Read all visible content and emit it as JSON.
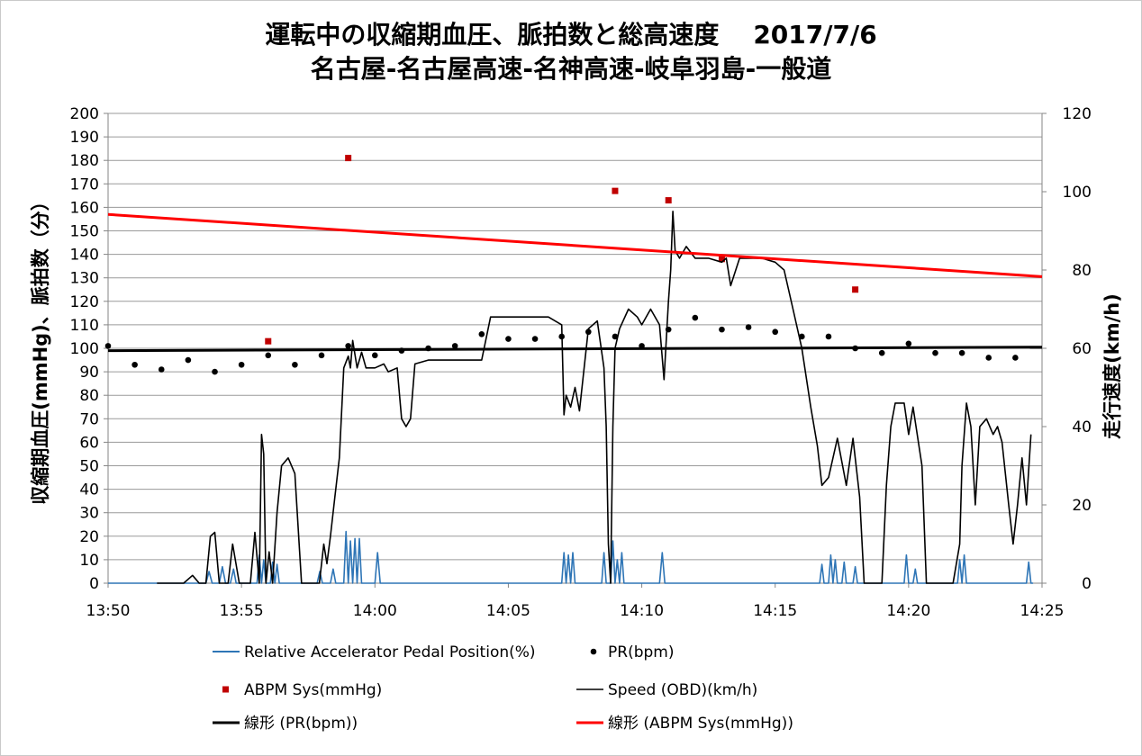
{
  "chart_data": {
    "type": "line",
    "title": "運転中の収縮期血圧、脈拍数と総高速度",
    "title_date": "2017/7/6",
    "subtitle": "名古屋-名古屋高速-名神高速-岐阜羽島-一般道",
    "ylabel": "収縮期血圧(mmHg)、脈拍数（分）",
    "y2label": "走行速度(km/h)",
    "ylim": [
      0,
      200
    ],
    "y2lim": [
      0,
      120
    ],
    "xlim": [
      "13:50",
      "14:25"
    ],
    "x_ticks": [
      "13:50",
      "13:55",
      "14:00",
      "14:05",
      "14:10",
      "14:15",
      "14:20",
      "14:25"
    ],
    "y_ticks": [
      0,
      10,
      20,
      30,
      40,
      50,
      60,
      70,
      80,
      90,
      100,
      110,
      120,
      130,
      140,
      150,
      160,
      170,
      180,
      190,
      200
    ],
    "y2_ticks": [
      0,
      20,
      40,
      60,
      80,
      100,
      120
    ],
    "grid": true,
    "legend_placement": "bottom",
    "series": [
      {
        "name": "Relative Accelerator Pedal Position(%)",
        "kind": "line",
        "axis": "left",
        "color": "#2e75b6",
        "points": [
          [
            "13:50:00",
            0
          ],
          [
            "13:53:40",
            0
          ],
          [
            "13:53:47",
            5
          ],
          [
            "13:53:54",
            0
          ],
          [
            "13:54:00",
            0
          ],
          [
            "13:54:10",
            0
          ],
          [
            "13:54:17",
            7
          ],
          [
            "13:54:24",
            0
          ],
          [
            "13:54:35",
            0
          ],
          [
            "13:54:42",
            6
          ],
          [
            "13:54:48",
            0
          ],
          [
            "13:55:35",
            0
          ],
          [
            "13:55:40",
            12
          ],
          [
            "13:55:45",
            0
          ],
          [
            "13:55:50",
            10
          ],
          [
            "13:55:55",
            0
          ],
          [
            "13:56:05",
            0
          ],
          [
            "13:56:10",
            9
          ],
          [
            "13:56:15",
            0
          ],
          [
            "13:56:20",
            8
          ],
          [
            "13:56:25",
            0
          ],
          [
            "13:57:50",
            0
          ],
          [
            "13:57:56",
            5
          ],
          [
            "13:58:02",
            0
          ],
          [
            "13:58:20",
            0
          ],
          [
            "13:58:26",
            6
          ],
          [
            "13:58:32",
            0
          ],
          [
            "13:58:50",
            0
          ],
          [
            "13:58:55",
            22
          ],
          [
            "13:59:00",
            0
          ],
          [
            "13:59:05",
            18
          ],
          [
            "13:59:10",
            0
          ],
          [
            "13:59:15",
            19
          ],
          [
            "13:59:20",
            0
          ],
          [
            "13:59:25",
            19
          ],
          [
            "13:59:30",
            0
          ],
          [
            "14:00:00",
            0
          ],
          [
            "14:00:06",
            13
          ],
          [
            "14:00:12",
            0
          ],
          [
            "14:07:00",
            0
          ],
          [
            "14:07:05",
            13
          ],
          [
            "14:07:10",
            0
          ],
          [
            "14:07:15",
            12
          ],
          [
            "14:07:20",
            0
          ],
          [
            "14:07:25",
            13
          ],
          [
            "14:07:30",
            0
          ],
          [
            "14:08:30",
            0
          ],
          [
            "14:08:35",
            13
          ],
          [
            "14:08:40",
            0
          ],
          [
            "14:08:50",
            0
          ],
          [
            "14:08:55",
            18
          ],
          [
            "14:09:00",
            0
          ],
          [
            "14:09:05",
            10
          ],
          [
            "14:09:10",
            0
          ],
          [
            "14:09:15",
            13
          ],
          [
            "14:09:20",
            0
          ],
          [
            "14:10:40",
            0
          ],
          [
            "14:10:46",
            13
          ],
          [
            "14:10:52",
            0
          ],
          [
            "14:16:40",
            0
          ],
          [
            "14:16:45",
            8
          ],
          [
            "14:16:50",
            0
          ],
          [
            "14:17:00",
            0
          ],
          [
            "14:17:05",
            12
          ],
          [
            "14:17:10",
            0
          ],
          [
            "14:17:15",
            10
          ],
          [
            "14:17:20",
            0
          ],
          [
            "14:17:30",
            0
          ],
          [
            "14:17:35",
            9
          ],
          [
            "14:17:40",
            0
          ],
          [
            "14:17:55",
            0
          ],
          [
            "14:18:00",
            7
          ],
          [
            "14:18:05",
            0
          ],
          [
            "14:19:50",
            0
          ],
          [
            "14:19:55",
            12
          ],
          [
            "14:20:00",
            0
          ],
          [
            "14:20:10",
            0
          ],
          [
            "14:20:15",
            6
          ],
          [
            "14:20:20",
            0
          ],
          [
            "14:21:50",
            0
          ],
          [
            "14:21:55",
            10
          ],
          [
            "14:22:00",
            0
          ],
          [
            "14:22:05",
            12
          ],
          [
            "14:22:10",
            0
          ],
          [
            "14:24:25",
            0
          ],
          [
            "14:24:30",
            9
          ],
          [
            "14:24:35",
            0
          ],
          [
            "14:24:40",
            0
          ]
        ]
      },
      {
        "name": "PR(bpm)",
        "kind": "scatter",
        "axis": "left",
        "color": "#000000",
        "points": [
          [
            "13:50",
            101
          ],
          [
            "13:51",
            93
          ],
          [
            "13:52",
            91
          ],
          [
            "13:53",
            95
          ],
          [
            "13:54",
            90
          ],
          [
            "13:55",
            93
          ],
          [
            "13:56",
            97
          ],
          [
            "13:57",
            93
          ],
          [
            "13:58",
            97
          ],
          [
            "13:59",
            101
          ],
          [
            "14:00",
            97
          ],
          [
            "14:01",
            99
          ],
          [
            "14:02",
            100
          ],
          [
            "14:03",
            101
          ],
          [
            "14:04",
            106
          ],
          [
            "14:05",
            104
          ],
          [
            "14:06",
            104
          ],
          [
            "14:07",
            105
          ],
          [
            "14:08",
            107
          ],
          [
            "14:09",
            105
          ],
          [
            "14:10",
            101
          ],
          [
            "14:11",
            108
          ],
          [
            "14:12",
            113
          ],
          [
            "14:13",
            108
          ],
          [
            "14:14",
            109
          ],
          [
            "14:15",
            107
          ],
          [
            "14:16",
            105
          ],
          [
            "14:17",
            105
          ],
          [
            "14:18",
            100
          ],
          [
            "14:19",
            98
          ],
          [
            "14:20",
            102
          ],
          [
            "14:21",
            98
          ],
          [
            "14:22",
            98
          ],
          [
            "14:23",
            96
          ],
          [
            "14:24",
            96
          ]
        ]
      },
      {
        "name": "ABPM Sys(mmHg)",
        "kind": "scatter",
        "axis": "left",
        "color": "#c00000",
        "points": [
          [
            "13:56",
            103
          ],
          [
            "13:59",
            181
          ],
          [
            "14:09",
            167
          ],
          [
            "14:11",
            163
          ],
          [
            "14:13",
            138
          ],
          [
            "14:18",
            125
          ]
        ]
      },
      {
        "name": "Speed (OBD)(km/h)",
        "kind": "line",
        "axis": "right",
        "color": "#000000",
        "points": [
          [
            "13:51:50",
            0
          ],
          [
            "13:52:50",
            0
          ],
          [
            "13:53:10",
            2
          ],
          [
            "13:53:25",
            0
          ],
          [
            "13:53:40",
            0
          ],
          [
            "13:53:50",
            12
          ],
          [
            "13:54:00",
            13
          ],
          [
            "13:54:10",
            0
          ],
          [
            "13:54:30",
            0
          ],
          [
            "13:54:40",
            10
          ],
          [
            "13:54:55",
            0
          ],
          [
            "13:55:20",
            0
          ],
          [
            "13:55:30",
            13
          ],
          [
            "13:55:40",
            0
          ],
          [
            "13:55:45",
            38
          ],
          [
            "13:55:50",
            33
          ],
          [
            "13:55:55",
            0
          ],
          [
            "13:56:02",
            8
          ],
          [
            "13:56:10",
            0
          ],
          [
            "13:56:20",
            18
          ],
          [
            "13:56:30",
            30
          ],
          [
            "13:56:45",
            32
          ],
          [
            "13:57:00",
            28
          ],
          [
            "13:57:15",
            0
          ],
          [
            "13:57:55",
            0
          ],
          [
            "13:58:05",
            10
          ],
          [
            "13:58:12",
            5
          ],
          [
            "13:58:20",
            12
          ],
          [
            "13:58:30",
            22
          ],
          [
            "13:58:40",
            32
          ],
          [
            "13:58:50",
            55
          ],
          [
            "13:59:00",
            58
          ],
          [
            "13:59:05",
            55
          ],
          [
            "13:59:10",
            62
          ],
          [
            "13:59:20",
            55
          ],
          [
            "13:59:30",
            59
          ],
          [
            "13:59:40",
            55
          ],
          [
            "14:00:00",
            55
          ],
          [
            "14:00:20",
            56
          ],
          [
            "14:00:30",
            54
          ],
          [
            "14:00:50",
            55
          ],
          [
            "14:01:00",
            42
          ],
          [
            "14:01:10",
            40
          ],
          [
            "14:01:20",
            42
          ],
          [
            "14:01:30",
            56
          ],
          [
            "14:02:00",
            57
          ],
          [
            "14:04:00",
            57
          ],
          [
            "14:04:20",
            68
          ],
          [
            "14:06:30",
            68
          ],
          [
            "14:07:00",
            66
          ],
          [
            "14:07:05",
            43
          ],
          [
            "14:07:10",
            48
          ],
          [
            "14:07:20",
            45
          ],
          [
            "14:07:30",
            50
          ],
          [
            "14:07:40",
            44
          ],
          [
            "14:08:00",
            65
          ],
          [
            "14:08:20",
            67
          ],
          [
            "14:08:35",
            55
          ],
          [
            "14:08:40",
            40
          ],
          [
            "14:08:45",
            10
          ],
          [
            "14:08:50",
            0
          ],
          [
            "14:08:55",
            40
          ],
          [
            "14:09:00",
            60
          ],
          [
            "14:09:10",
            65
          ],
          [
            "14:09:30",
            70
          ],
          [
            "14:09:50",
            68
          ],
          [
            "14:10:00",
            66
          ],
          [
            "14:10:20",
            70
          ],
          [
            "14:10:40",
            66
          ],
          [
            "14:10:50",
            52
          ],
          [
            "14:11:00",
            72
          ],
          [
            "14:11:05",
            80
          ],
          [
            "14:11:10",
            95
          ],
          [
            "14:11:15",
            85
          ],
          [
            "14:11:25",
            83
          ],
          [
            "14:11:40",
            86
          ],
          [
            "14:12:00",
            83
          ],
          [
            "14:12:30",
            83
          ],
          [
            "14:13:00",
            82
          ],
          [
            "14:13:10",
            83
          ],
          [
            "14:13:20",
            76
          ],
          [
            "14:13:40",
            83
          ],
          [
            "14:14:00",
            83
          ],
          [
            "14:14:30",
            83
          ],
          [
            "14:15:00",
            82
          ],
          [
            "14:15:20",
            80
          ],
          [
            "14:15:40",
            70
          ],
          [
            "14:16:00",
            60
          ],
          [
            "14:16:20",
            45
          ],
          [
            "14:16:35",
            35
          ],
          [
            "14:16:45",
            25
          ],
          [
            "14:17:00",
            27
          ],
          [
            "14:17:20",
            37
          ],
          [
            "14:17:40",
            25
          ],
          [
            "14:17:55",
            37
          ],
          [
            "14:18:10",
            22
          ],
          [
            "14:18:20",
            0
          ],
          [
            "14:19:00",
            0
          ],
          [
            "14:19:10",
            25
          ],
          [
            "14:19:20",
            40
          ],
          [
            "14:19:30",
            46
          ],
          [
            "14:19:50",
            46
          ],
          [
            "14:20:00",
            38
          ],
          [
            "14:20:10",
            45
          ],
          [
            "14:20:30",
            30
          ],
          [
            "14:20:40",
            0
          ],
          [
            "14:21:10",
            0
          ],
          [
            "14:21:20",
            0
          ],
          [
            "14:21:40",
            0
          ],
          [
            "14:21:55",
            10
          ],
          [
            "14:22:00",
            30
          ],
          [
            "14:22:10",
            46
          ],
          [
            "14:22:20",
            40
          ],
          [
            "14:22:30",
            20
          ],
          [
            "14:22:40",
            40
          ],
          [
            "14:22:55",
            42
          ],
          [
            "14:23:10",
            38
          ],
          [
            "14:23:20",
            40
          ],
          [
            "14:23:30",
            36
          ],
          [
            "14:23:45",
            20
          ],
          [
            "14:23:55",
            10
          ],
          [
            "14:24:05",
            20
          ],
          [
            "14:24:15",
            32
          ],
          [
            "14:24:25",
            20
          ],
          [
            "14:24:35",
            38
          ]
        ]
      },
      {
        "name": "線形 (PR(bpm))",
        "kind": "trendline",
        "axis": "left",
        "color": "#000000",
        "points": [
          [
            "13:50",
            99
          ],
          [
            "14:25",
            100.5
          ]
        ]
      },
      {
        "name": "線形 (ABPM Sys(mmHg))",
        "kind": "trendline",
        "axis": "left",
        "color": "#ff0000",
        "points": [
          [
            "13:50",
            157
          ],
          [
            "14:25",
            130.5
          ]
        ]
      }
    ]
  }
}
